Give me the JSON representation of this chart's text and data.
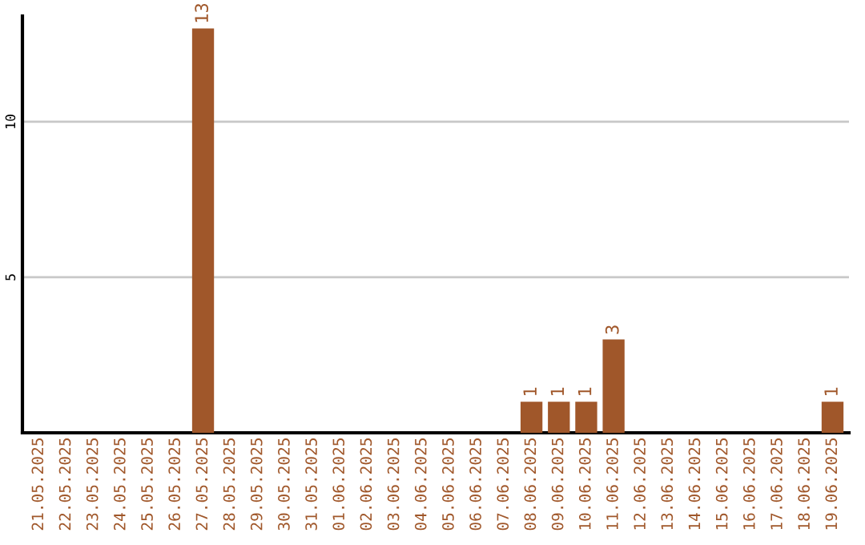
{
  "chart_data": {
    "type": "bar",
    "categories": [
      "21.05.2025",
      "22.05.2025",
      "23.05.2025",
      "24.05.2025",
      "25.05.2025",
      "26.05.2025",
      "27.05.2025",
      "28.05.2025",
      "29.05.2025",
      "30.05.2025",
      "31.05.2025",
      "01.06.2025",
      "02.06.2025",
      "03.06.2025",
      "04.06.2025",
      "05.06.2025",
      "06.06.2025",
      "07.06.2025",
      "08.06.2025",
      "09.06.2025",
      "10.06.2025",
      "11.06.2025",
      "12.06.2025",
      "13.06.2025",
      "14.06.2025",
      "15.06.2025",
      "16.06.2025",
      "17.06.2025",
      "18.06.2025",
      "19.06.2025"
    ],
    "values": [
      0,
      0,
      0,
      0,
      0,
      0,
      13,
      0,
      0,
      0,
      0,
      0,
      0,
      0,
      0,
      0,
      0,
      0,
      1,
      1,
      1,
      3,
      0,
      0,
      0,
      0,
      0,
      0,
      0,
      1
    ],
    "value_labels": [
      null,
      null,
      null,
      null,
      null,
      null,
      "13",
      null,
      null,
      null,
      null,
      null,
      null,
      null,
      null,
      null,
      null,
      null,
      "1",
      "1",
      "1",
      "3",
      null,
      null,
      null,
      null,
      null,
      null,
      null,
      "1"
    ],
    "color": "#a0572a",
    "ylim": [
      0,
      13.4
    ],
    "yticks": [
      5,
      10
    ],
    "grid": "y"
  }
}
